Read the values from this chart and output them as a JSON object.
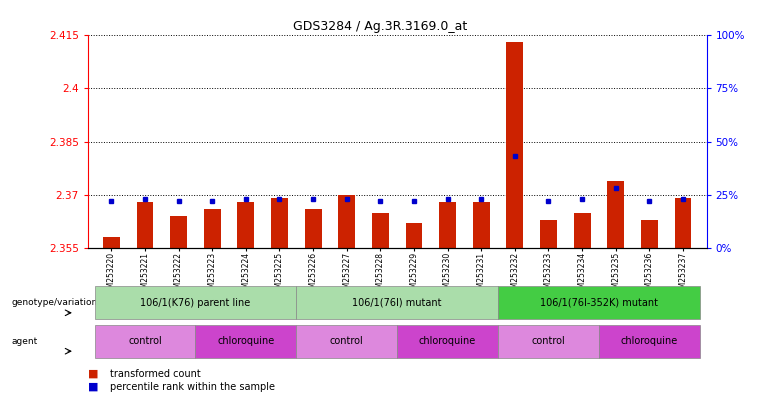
{
  "title": "GDS3284 / Ag.3R.3169.0_at",
  "samples": [
    "GSM253220",
    "GSM253221",
    "GSM253222",
    "GSM253223",
    "GSM253224",
    "GSM253225",
    "GSM253226",
    "GSM253227",
    "GSM253228",
    "GSM253229",
    "GSM253230",
    "GSM253231",
    "GSM253232",
    "GSM253233",
    "GSM253234",
    "GSM253235",
    "GSM253236",
    "GSM253237"
  ],
  "red_values": [
    2.358,
    2.368,
    2.364,
    2.366,
    2.368,
    2.369,
    2.366,
    2.37,
    2.365,
    2.362,
    2.368,
    2.368,
    2.413,
    2.363,
    2.365,
    2.374,
    2.363,
    2.369
  ],
  "blue_values": [
    22,
    23,
    22,
    22,
    23,
    23,
    23,
    23,
    22,
    22,
    23,
    23,
    43,
    22,
    23,
    28,
    22,
    23
  ],
  "ymin": 2.355,
  "ymax": 2.415,
  "yticks_left": [
    2.355,
    2.37,
    2.385,
    2.4,
    2.415
  ],
  "yticks_right": [
    0,
    25,
    50,
    75,
    100
  ],
  "genotype_groups": [
    {
      "label": "106/1(K76) parent line",
      "start": 0,
      "end": 5,
      "color": "#aaddaa"
    },
    {
      "label": "106/1(76I) mutant",
      "start": 6,
      "end": 11,
      "color": "#aaddaa"
    },
    {
      "label": "106/1(76I-352K) mutant",
      "start": 12,
      "end": 17,
      "color": "#44cc44"
    }
  ],
  "agent_defs": [
    {
      "label": "control",
      "start": 0,
      "end": 2,
      "color": "#dd88dd"
    },
    {
      "label": "chloroquine",
      "start": 3,
      "end": 5,
      "color": "#cc44cc"
    },
    {
      "label": "control",
      "start": 6,
      "end": 8,
      "color": "#dd88dd"
    },
    {
      "label": "chloroquine",
      "start": 9,
      "end": 11,
      "color": "#cc44cc"
    },
    {
      "label": "control",
      "start": 12,
      "end": 14,
      "color": "#dd88dd"
    },
    {
      "label": "chloroquine",
      "start": 15,
      "end": 17,
      "color": "#cc44cc"
    }
  ],
  "bar_color": "#cc2200",
  "dot_color": "#0000cc",
  "background_color": "#ffffff"
}
